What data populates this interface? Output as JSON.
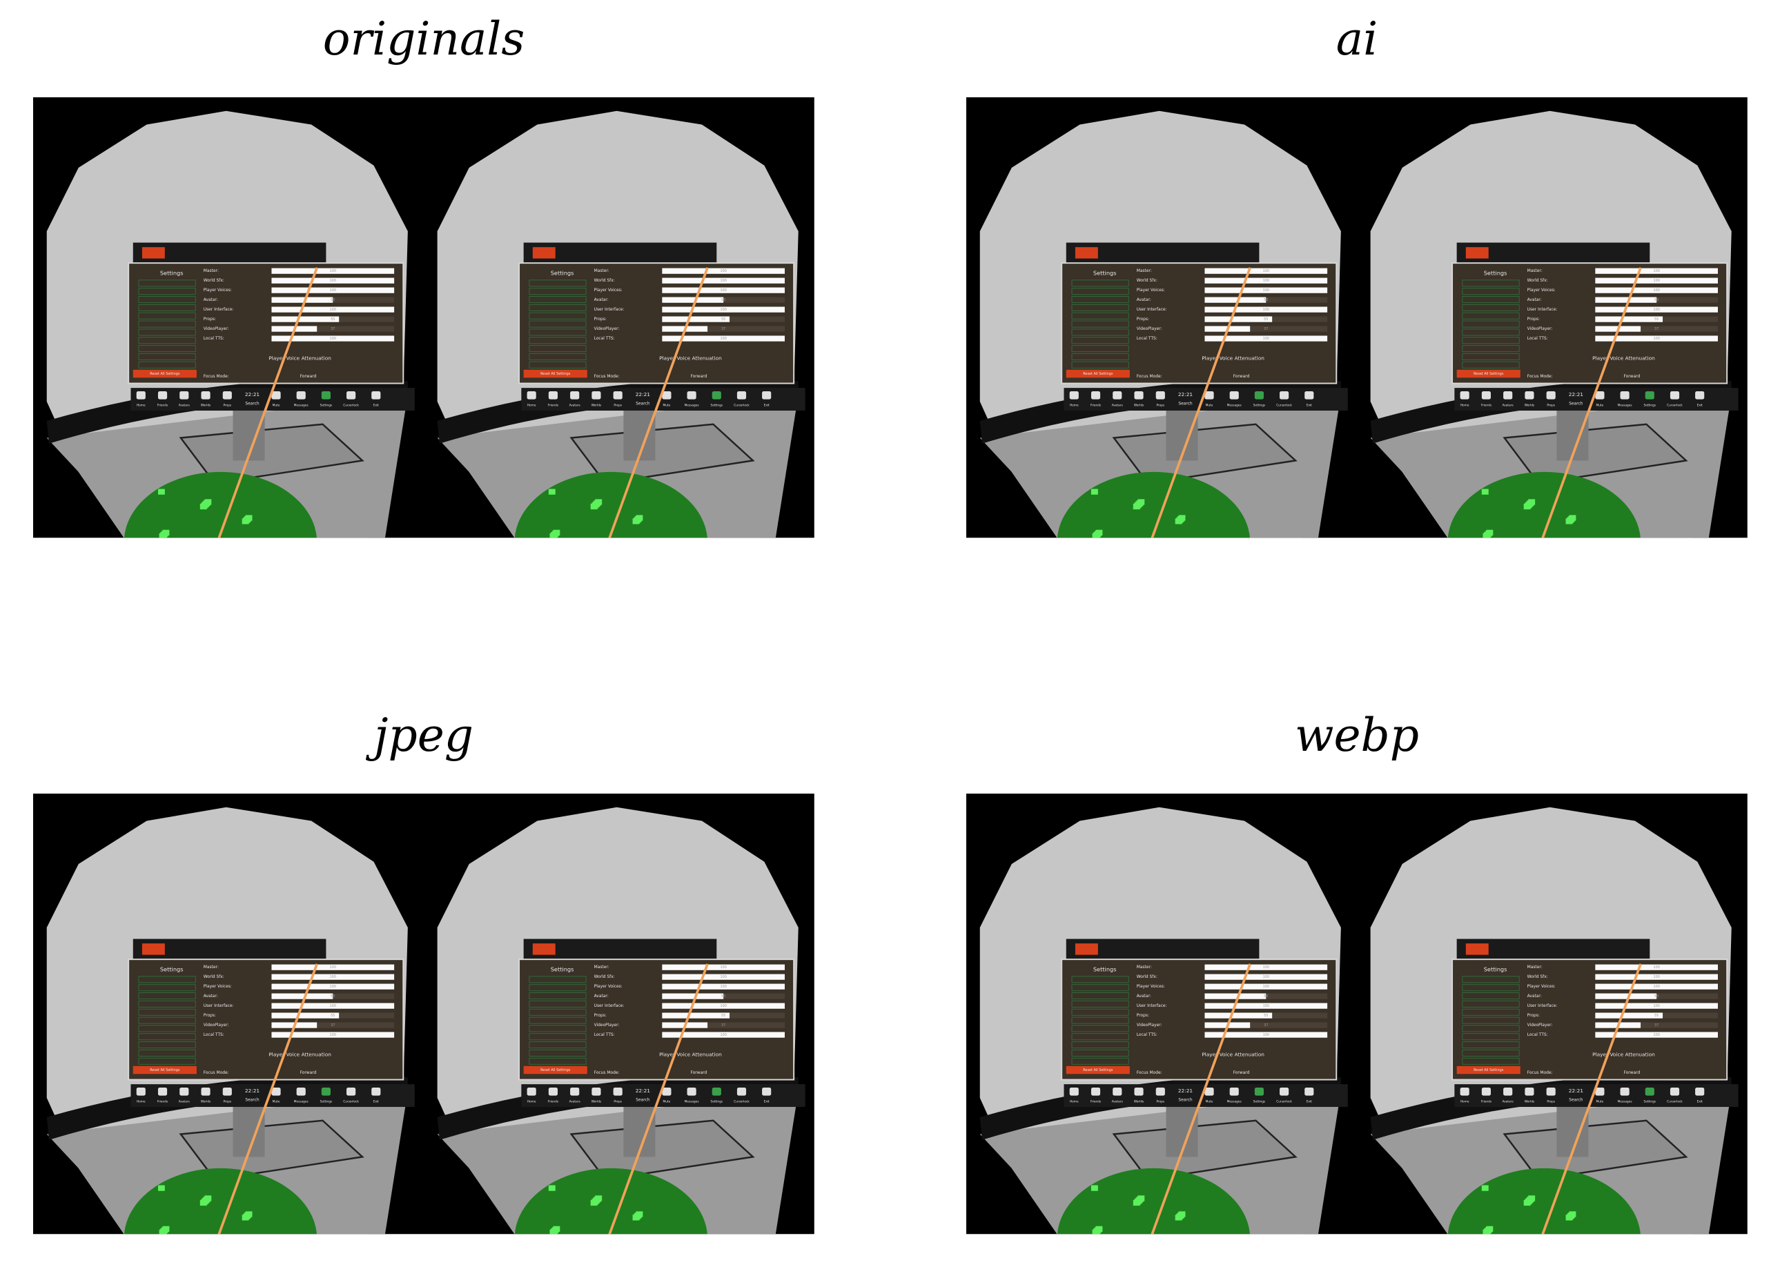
{
  "panels": [
    {
      "title": "originals"
    },
    {
      "title": "ai"
    },
    {
      "title": "jpeg"
    },
    {
      "title": "webp"
    }
  ],
  "scene": {
    "settings_title": "Settings",
    "sliders": [
      {
        "label": "Master:",
        "value": 100
      },
      {
        "label": "World Sfx:",
        "value": 100
      },
      {
        "label": "Player Voices:",
        "value": 100
      },
      {
        "label": "Avatar:",
        "value": 50
      },
      {
        "label": "User Interface:",
        "value": 100
      },
      {
        "label": "Props:",
        "value": 55
      },
      {
        "label": "VideoPlayer:",
        "value": 37
      },
      {
        "label": "Local TTS:",
        "value": 100
      }
    ],
    "section": "Player Voice Attenuation",
    "focus_label": "Focus Mode:",
    "focus_value": "Forward",
    "reset": "Reset All Settings",
    "time": "22:21",
    "search": "Search",
    "menu": [
      "Home",
      "Friends",
      "Avatars",
      "Worlds",
      "Props",
      "Mute",
      "Messages",
      "Settings",
      "Cursorlock",
      "Exit"
    ]
  }
}
